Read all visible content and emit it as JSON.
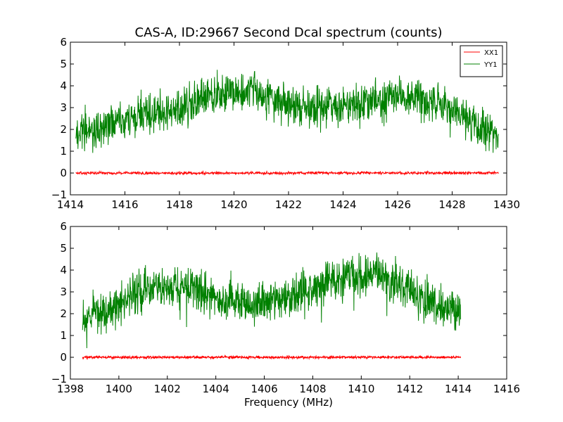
{
  "title": "CAS-A, ID:29667 Second Dcal spectrum (counts)",
  "xlabel": "Frequency (MHz)",
  "chart_data": [
    {
      "type": "line",
      "xlim": [
        1414,
        1430
      ],
      "ylim": [
        -1,
        6
      ],
      "xticks": [
        "1414",
        "1416",
        "1418",
        "1420",
        "1422",
        "1424",
        "1426",
        "1428",
        "1430"
      ],
      "xtick_values": [
        1414,
        1416,
        1418,
        1420,
        1422,
        1424,
        1426,
        1428,
        1430
      ],
      "yticks": [
        "−1",
        "0",
        "1",
        "2",
        "3",
        "4",
        "5",
        "6"
      ],
      "ytick_values": [
        -1,
        0,
        1,
        2,
        3,
        4,
        5,
        6
      ],
      "legend": {
        "placement": "top-right"
      },
      "series": [
        {
          "name": "XX1",
          "color": "#ff0000",
          "x_range": [
            1414.2,
            1429.7
          ],
          "envelope": [
            [
              1414.2,
              0.0
            ],
            [
              1429.7,
              0.0
            ]
          ],
          "noise": 0.03
        },
        {
          "name": "YY1",
          "color": "#008000",
          "x_range": [
            1414.2,
            1429.7
          ],
          "envelope": [
            [
              1414.2,
              1.8
            ],
            [
              1416.0,
              2.4
            ],
            [
              1418.0,
              3.0
            ],
            [
              1419.2,
              3.6
            ],
            [
              1420.0,
              3.7
            ],
            [
              1420.6,
              3.9
            ],
            [
              1421.5,
              3.2
            ],
            [
              1422.5,
              3.0
            ],
            [
              1424.0,
              3.0
            ],
            [
              1425.5,
              3.4
            ],
            [
              1426.5,
              3.6
            ],
            [
              1427.5,
              3.2
            ],
            [
              1428.5,
              2.5
            ],
            [
              1429.7,
              1.6
            ]
          ],
          "noise": 0.45
        }
      ]
    },
    {
      "type": "line",
      "xlim": [
        1398,
        1416
      ],
      "ylim": [
        -1,
        6
      ],
      "xticks": [
        "1398",
        "1400",
        "1402",
        "1404",
        "1406",
        "1408",
        "1410",
        "1412",
        "1414",
        "1416"
      ],
      "xtick_values": [
        1398,
        1400,
        1402,
        1404,
        1406,
        1408,
        1410,
        1412,
        1414,
        1416
      ],
      "yticks": [
        "−1",
        "0",
        "1",
        "2",
        "3",
        "4",
        "5",
        "6"
      ],
      "ytick_values": [
        -1,
        0,
        1,
        2,
        3,
        4,
        5,
        6
      ],
      "series": [
        {
          "name": "XX1",
          "color": "#ff0000",
          "x_range": [
            1398.5,
            1414.1
          ],
          "envelope": [
            [
              1398.5,
              0.0
            ],
            [
              1414.1,
              0.0
            ]
          ],
          "noise": 0.03
        },
        {
          "name": "YY1",
          "color": "#008000",
          "x_range": [
            1398.5,
            1414.1
          ],
          "envelope": [
            [
              1398.5,
              1.8
            ],
            [
              1399.5,
              2.1
            ],
            [
              1400.5,
              2.9
            ],
            [
              1401.5,
              3.2
            ],
            [
              1402.5,
              3.2
            ],
            [
              1403.5,
              3.0
            ],
            [
              1404.5,
              2.6
            ],
            [
              1405.5,
              2.5
            ],
            [
              1406.5,
              2.6
            ],
            [
              1407.5,
              3.0
            ],
            [
              1408.5,
              3.3
            ],
            [
              1409.5,
              3.6
            ],
            [
              1410.5,
              3.8
            ],
            [
              1411.5,
              3.4
            ],
            [
              1412.5,
              2.6
            ],
            [
              1413.5,
              2.2
            ],
            [
              1414.1,
              2.0
            ]
          ],
          "noise": 0.45
        }
      ]
    }
  ]
}
